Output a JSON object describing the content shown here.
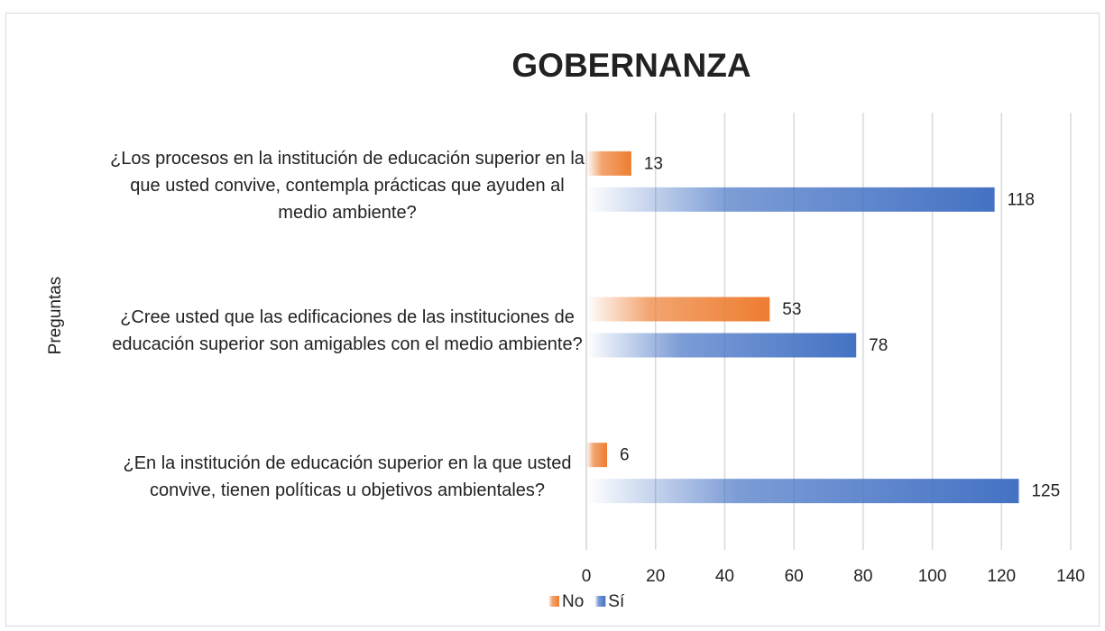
{
  "chart_data": {
    "type": "barh",
    "title": "GOBERNANZA",
    "categories": [
      "¿Los procesos en la institución de educación superior en la que usted convive, contempla prácticas que ayuden al medio ambiente?",
      "¿Cree usted que las edificaciones de las instituciones de educación superior son amigables con el medio ambiente?",
      "¿En la institución de educación superior en la que usted convive, tienen políticas u objetivos ambientales?"
    ],
    "series": [
      {
        "name": "No",
        "color": "#ed7d31",
        "values": [
          13,
          53,
          6
        ]
      },
      {
        "name": "Sí",
        "color": "#4472c4",
        "values": [
          118,
          78,
          125
        ]
      }
    ],
    "y_label": "Preguntas",
    "xlim": [
      0,
      140
    ],
    "xticks": [
      0,
      20,
      40,
      60,
      80,
      100,
      120,
      140
    ],
    "grid": true,
    "legend": "bottom"
  }
}
